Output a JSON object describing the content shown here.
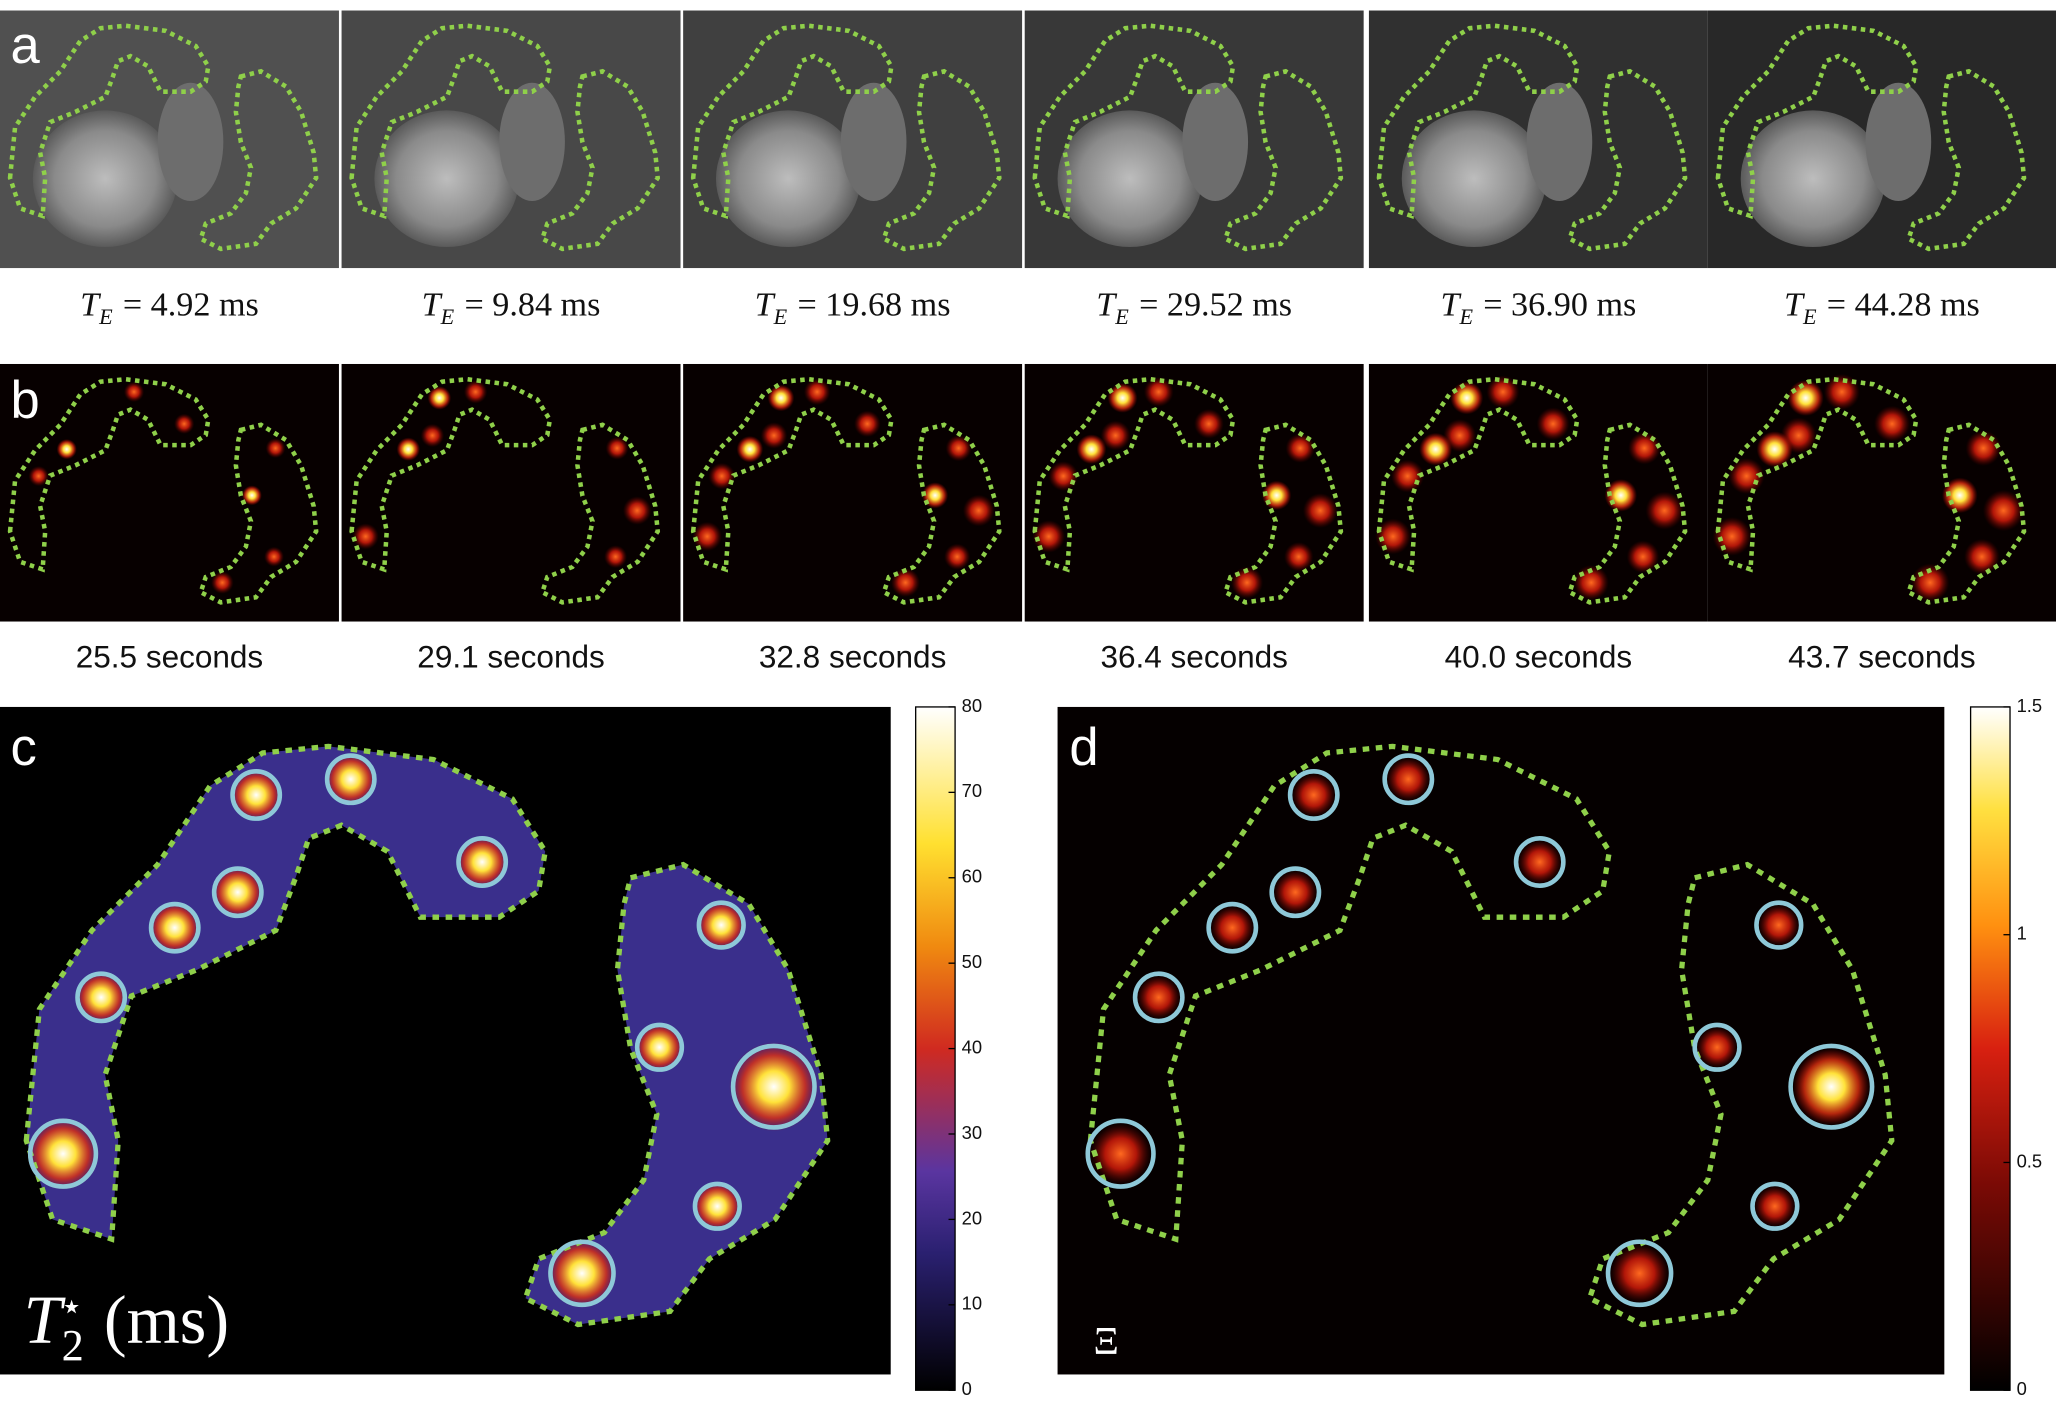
{
  "panels": {
    "a": {
      "label": "a",
      "captions": [
        {
          "symbol": "T",
          "subscript": "E",
          "text": "= 4.92 ms"
        },
        {
          "symbol": "T",
          "subscript": "E",
          "text": "= 9.84 ms"
        },
        {
          "symbol": "T",
          "subscript": "E",
          "text": "= 19.68 ms"
        },
        {
          "symbol": "T",
          "subscript": "E",
          "text": "= 29.52 ms"
        },
        {
          "symbol": "T",
          "subscript": "E",
          "text": "= 36.90 ms"
        },
        {
          "symbol": "T",
          "subscript": "E",
          "text": "= 44.28 ms"
        }
      ]
    },
    "b": {
      "label": "b",
      "captions": [
        "25.5 seconds",
        "29.1 seconds",
        "32.8 seconds",
        "36.4 seconds",
        "40.0 seconds",
        "43.7 seconds"
      ]
    },
    "c": {
      "label": "c",
      "annotation": {
        "symbol": "T",
        "subscript": "2",
        "superscript": "⋆",
        "text": "(ms)"
      },
      "colorbar": {
        "lim": [
          0,
          80
        ],
        "ticks": [
          0,
          10,
          20,
          30,
          40,
          50,
          60,
          70,
          80
        ]
      }
    },
    "d": {
      "label": "d",
      "annotation": "Ξ",
      "colorbar": {
        "lim": [
          0,
          1.5
        ],
        "ticks": [
          0,
          0.5,
          1,
          1.5
        ]
      }
    }
  }
}
